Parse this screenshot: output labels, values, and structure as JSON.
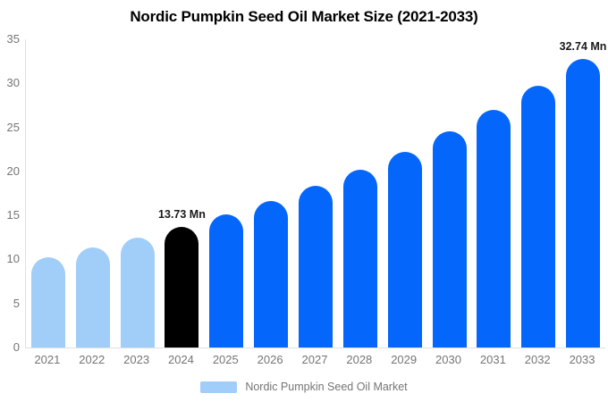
{
  "title": "Nordic Pumpkin Seed Oil Market Size (2021-2033)",
  "legend": {
    "label": "Nordic Pumpkin Seed Oil Market"
  },
  "colors": {
    "historical_bar": "#a1cdf9",
    "base_year_bar": "#000000",
    "forecast_bar": "#0566fb",
    "axis_text": "#757575",
    "annotation_text": "#1a1a1a",
    "axis_line": "#e0e0e0",
    "title_text": "#000000",
    "background": "#ffffff"
  },
  "chart_data": {
    "type": "bar",
    "title": "Nordic Pumpkin Seed Oil Market Size (2021-2033)",
    "series_name": "Nordic Pumpkin Seed Oil Market",
    "unit": "Mn",
    "categories": [
      "2021",
      "2022",
      "2023",
      "2024",
      "2025",
      "2026",
      "2027",
      "2028",
      "2029",
      "2030",
      "2031",
      "2032",
      "2033"
    ],
    "values": [
      10.28,
      11.32,
      12.47,
      13.73,
      15.12,
      16.66,
      18.34,
      20.2,
      22.25,
      24.51,
      26.99,
      29.73,
      32.74
    ],
    "bar_roles": [
      "historical",
      "historical",
      "historical",
      "base",
      "forecast",
      "forecast",
      "forecast",
      "forecast",
      "forecast",
      "forecast",
      "forecast",
      "forecast",
      "forecast"
    ],
    "annotations": [
      {
        "category": "2024",
        "text": "13.73 Mn"
      },
      {
        "category": "2033",
        "text": "32.74 Mn"
      }
    ],
    "xlabel": "",
    "ylabel": "",
    "ylim": [
      0,
      35
    ],
    "yticks": [
      0,
      5,
      10,
      15,
      20,
      25,
      30,
      35
    ],
    "grid": false,
    "legend_position": "bottom"
  }
}
